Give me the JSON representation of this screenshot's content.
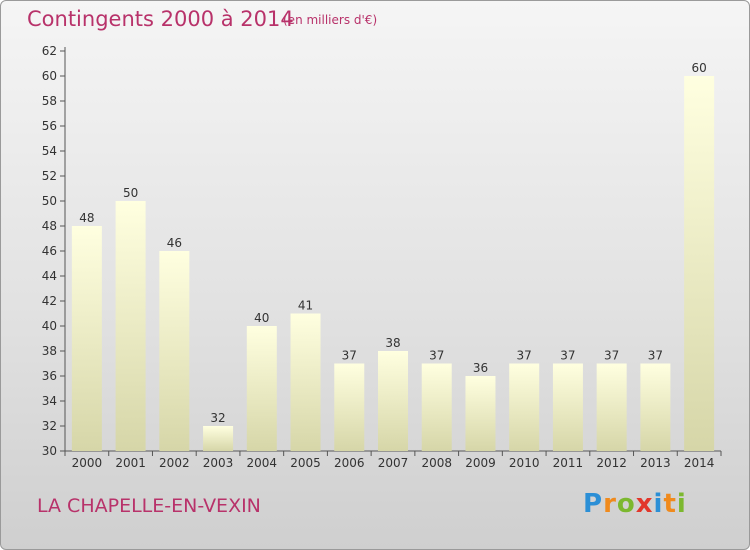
{
  "header": {
    "title": "Contingents 2000 à 2014",
    "subtitle": "(en milliers d'€)"
  },
  "footer": {
    "commune": "LA CHAPELLE-EN-VEXIN",
    "logo": [
      "P",
      "r",
      "o",
      "x",
      "i",
      "t",
      "i"
    ]
  },
  "colors": {
    "accent": "#b8326a",
    "bar_top": "#ffffe0",
    "bar_bottom": "#d6d6a8"
  },
  "chart_data": {
    "type": "bar",
    "categories": [
      "2000",
      "2001",
      "2002",
      "2003",
      "2004",
      "2005",
      "2006",
      "2007",
      "2008",
      "2009",
      "2010",
      "2011",
      "2012",
      "2013",
      "2014"
    ],
    "values": [
      48,
      50,
      46,
      32,
      40,
      41,
      37,
      38,
      37,
      36,
      37,
      37,
      37,
      37,
      60
    ],
    "title": "Contingents 2000 à 2014",
    "ylim": [
      30,
      62
    ],
    "yticks": [
      30,
      32,
      34,
      36,
      38,
      40,
      42,
      44,
      46,
      48,
      50,
      52,
      54,
      56,
      58,
      60,
      62
    ],
    "grid": false,
    "data_labels": true
  }
}
